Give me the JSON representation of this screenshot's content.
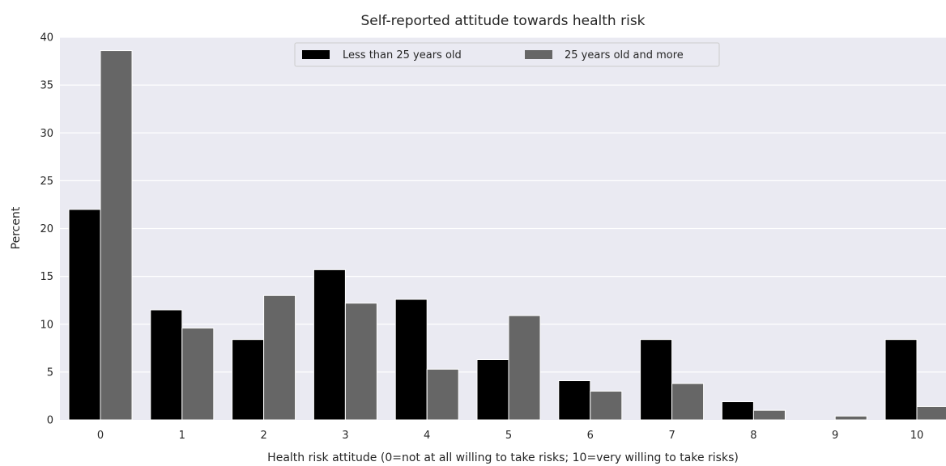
{
  "chart_data": {
    "type": "bar",
    "title": "Self-reported attitude towards health risk",
    "xlabel": "Health risk attitude  (0=not at all willing to take risks; 10=very willing to take risks)",
    "ylabel": "Percent",
    "categories": [
      "0",
      "1",
      "2",
      "3",
      "4",
      "5",
      "6",
      "7",
      "8",
      "9",
      "10"
    ],
    "series": [
      {
        "name": "Less than 25 years old",
        "color": "#000000",
        "values": [
          22.0,
          11.5,
          8.4,
          15.7,
          12.6,
          6.3,
          4.1,
          8.4,
          1.9,
          0.0,
          8.4
        ]
      },
      {
        "name": "25 years old and more",
        "color": "#666666",
        "values": [
          38.6,
          9.6,
          13.0,
          12.2,
          5.3,
          10.9,
          3.0,
          3.8,
          1.0,
          0.4,
          1.4
        ]
      }
    ],
    "ylim": [
      0,
      40
    ],
    "yticks": [
      0,
      5,
      10,
      15,
      20,
      25,
      30,
      35,
      40
    ],
    "grid": true,
    "background": "#eaeaf2",
    "legend_position": "top-center"
  }
}
